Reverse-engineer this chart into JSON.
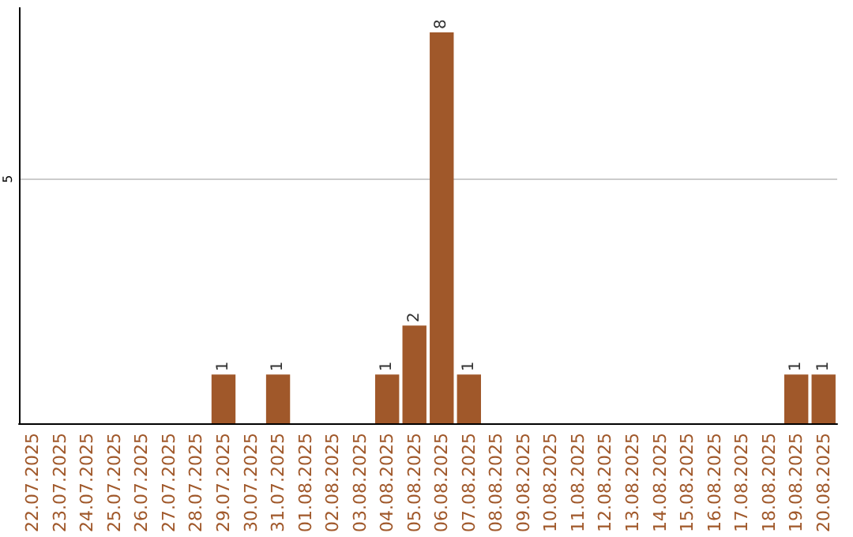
{
  "chart_data": {
    "type": "bar",
    "categories": [
      "22.07.2025",
      "23.07.2025",
      "24.07.2025",
      "25.07.2025",
      "26.07.2025",
      "27.07.2025",
      "28.07.2025",
      "29.07.2025",
      "30.07.2025",
      "31.07.2025",
      "01.08.2025",
      "02.08.2025",
      "03.08.2025",
      "04.08.2025",
      "05.08.2025",
      "06.08.2025",
      "07.08.2025",
      "08.08.2025",
      "09.08.2025",
      "10.08.2025",
      "11.08.2025",
      "12.08.2025",
      "13.08.2025",
      "14.08.2025",
      "15.08.2025",
      "16.08.2025",
      "17.08.2025",
      "18.08.2025",
      "19.08.2025",
      "20.08.2025"
    ],
    "values": [
      0,
      0,
      0,
      0,
      0,
      0,
      0,
      1,
      0,
      1,
      0,
      0,
      0,
      1,
      2,
      8,
      1,
      0,
      0,
      0,
      0,
      0,
      0,
      0,
      0,
      0,
      0,
      0,
      1,
      1
    ],
    "value_labels": [
      null,
      null,
      null,
      null,
      null,
      null,
      null,
      "1",
      null,
      "1",
      null,
      null,
      null,
      "1",
      "2",
      "8",
      "1",
      null,
      null,
      null,
      null,
      null,
      null,
      null,
      null,
      null,
      null,
      null,
      "1",
      "1"
    ],
    "color": "#a0582a",
    "ylim": [
      0,
      8.5
    ],
    "yticks": [
      5
    ],
    "grid": "y"
  }
}
